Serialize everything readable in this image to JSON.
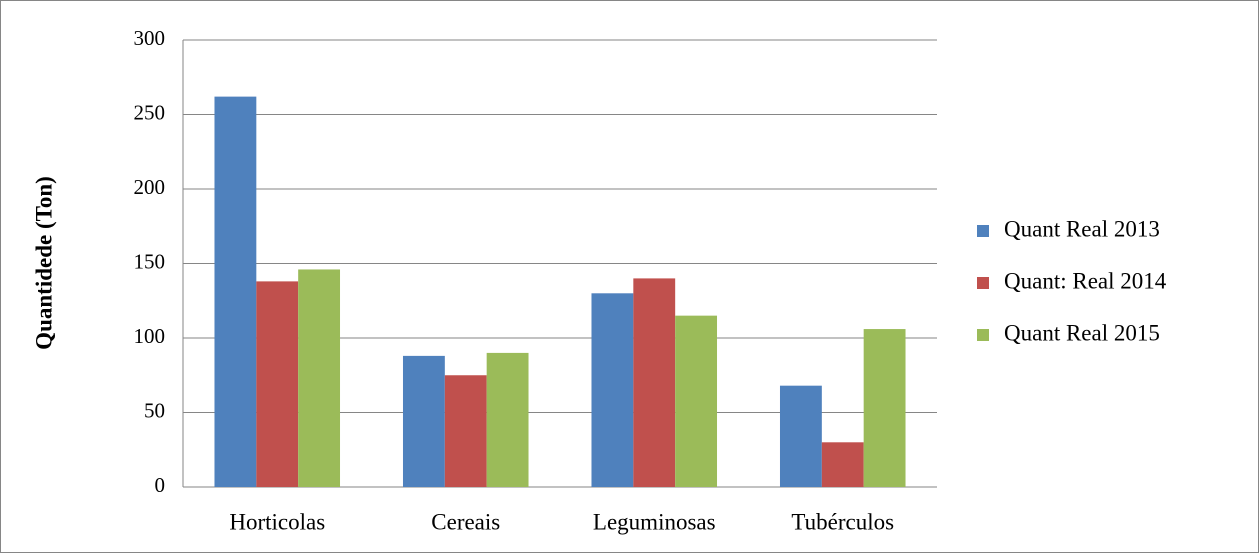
{
  "chart_data": {
    "type": "bar",
    "y_label": "Quantidede (Ton)",
    "categories": [
      "Horticolas",
      "Cereais",
      "Leguminosas",
      "Tubérculos"
    ],
    "series": [
      {
        "name": "Quant Real 2013",
        "color": "#4f81bd",
        "values": [
          262,
          88,
          130,
          68
        ]
      },
      {
        "name": "Quant: Real 2014",
        "color": "#c0504d",
        "values": [
          138,
          75,
          140,
          30
        ]
      },
      {
        "name": "Quant Real 2015",
        "color": "#9bbb59",
        "values": [
          146,
          90,
          115,
          106
        ]
      }
    ],
    "ylim": [
      0,
      300
    ],
    "yticks": [
      0,
      50,
      100,
      150,
      200,
      250,
      300
    ],
    "grid": true,
    "legend": "right"
  }
}
